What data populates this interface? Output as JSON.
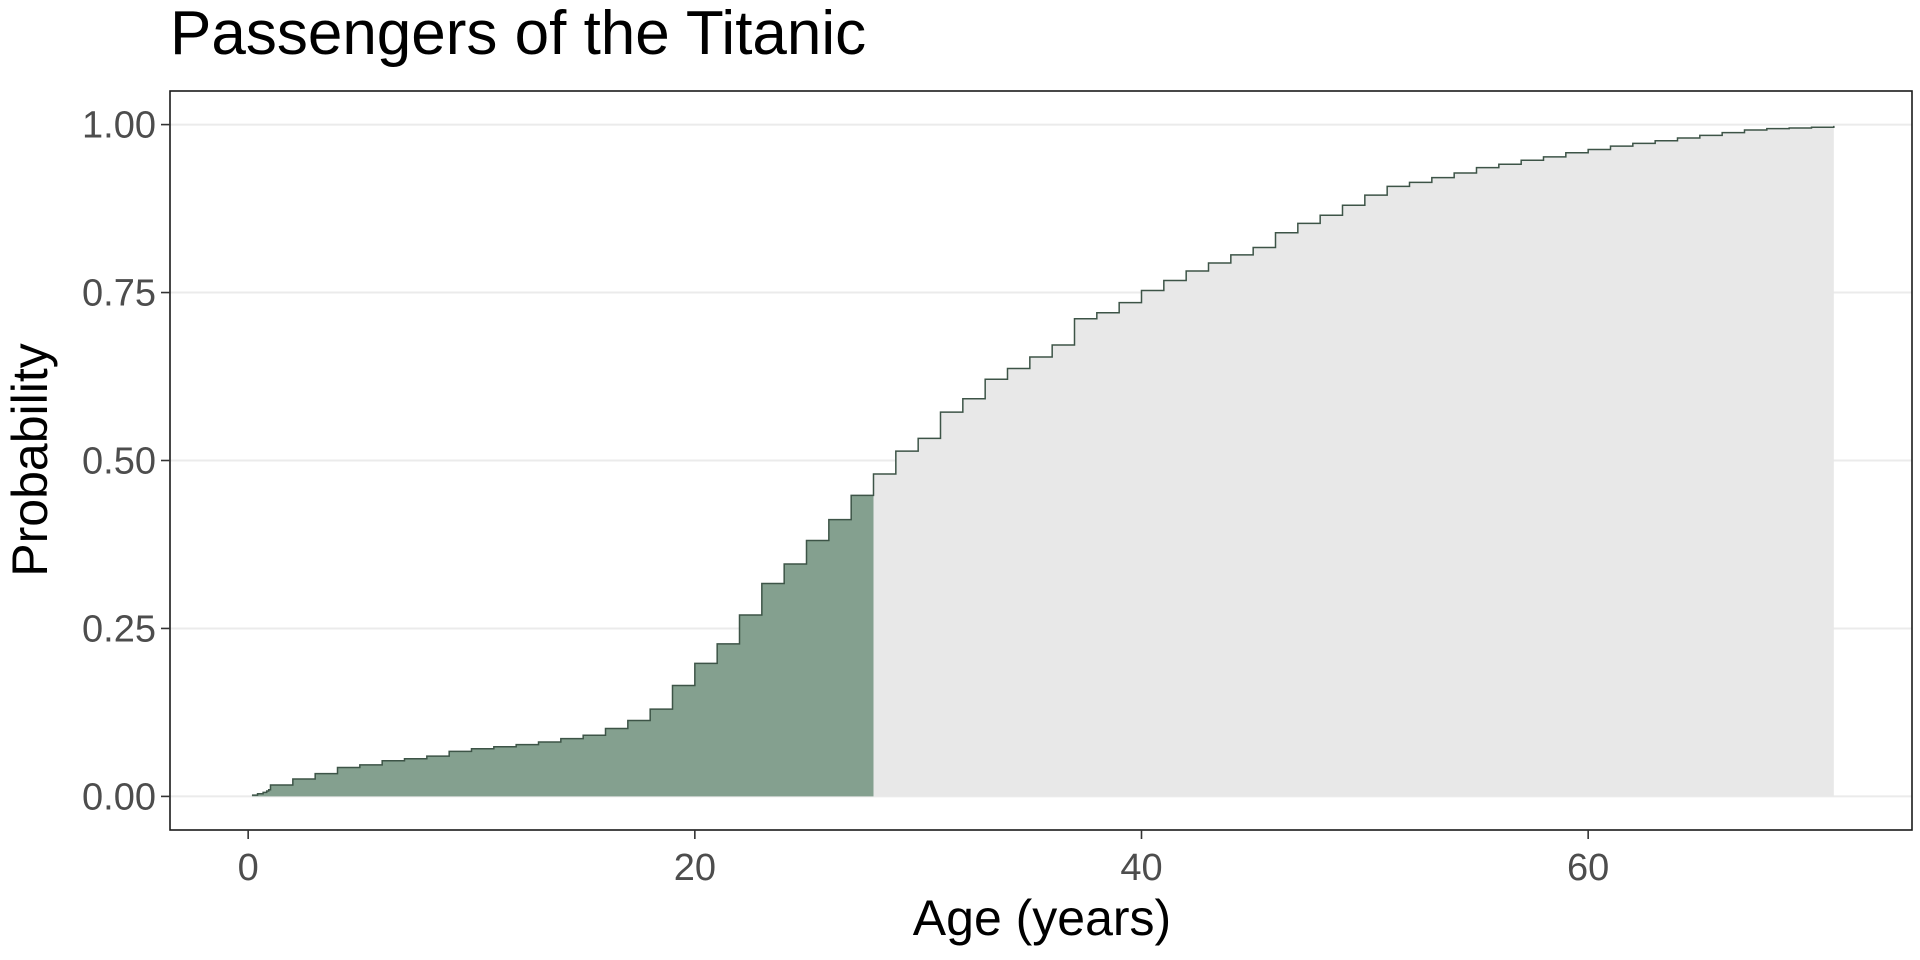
{
  "chart_data": {
    "type": "area",
    "title": "Passengers of the Titanic",
    "xlabel": "Age (years)",
    "ylabel": "Probability",
    "xlim": [
      -3.5,
      74.5
    ],
    "ylim": [
      -0.05,
      1.05
    ],
    "x_ticks": [
      0,
      20,
      40,
      60
    ],
    "x_tick_labels": [
      "0",
      "20",
      "40",
      "60"
    ],
    "y_ticks": [
      0,
      0.25,
      0.5,
      0.75,
      1.0
    ],
    "y_tick_labels": [
      "0.00",
      "0.25",
      "0.50",
      "0.75",
      "1.00"
    ],
    "grid": "horizontal",
    "highlight_until_x": 28,
    "highlight_color": "#84a08f",
    "remainder_color": "#e8e8e8",
    "line_color": "#3d5447",
    "steps": [
      [
        0.17,
        0.002
      ],
      [
        0.42,
        0.004
      ],
      [
        0.67,
        0.006
      ],
      [
        0.83,
        0.008
      ],
      [
        0.92,
        0.01
      ],
      [
        1,
        0.017
      ],
      [
        2,
        0.026
      ],
      [
        3,
        0.034
      ],
      [
        4,
        0.043
      ],
      [
        5,
        0.047
      ],
      [
        6,
        0.053
      ],
      [
        7,
        0.056
      ],
      [
        8,
        0.06
      ],
      [
        9,
        0.067
      ],
      [
        10,
        0.071
      ],
      [
        11,
        0.074
      ],
      [
        12,
        0.077
      ],
      [
        13,
        0.081
      ],
      [
        14,
        0.086
      ],
      [
        15,
        0.091
      ],
      [
        16,
        0.101
      ],
      [
        17,
        0.113
      ],
      [
        18,
        0.13
      ],
      [
        19,
        0.165
      ],
      [
        20,
        0.198
      ],
      [
        21,
        0.227
      ],
      [
        22,
        0.27
      ],
      [
        23,
        0.317
      ],
      [
        24,
        0.346
      ],
      [
        25,
        0.381
      ],
      [
        26,
        0.412
      ],
      [
        27,
        0.448
      ],
      [
        28,
        0.48
      ],
      [
        29,
        0.514
      ],
      [
        30,
        0.533
      ],
      [
        31,
        0.572
      ],
      [
        32,
        0.592
      ],
      [
        33,
        0.621
      ],
      [
        34,
        0.637
      ],
      [
        35,
        0.654
      ],
      [
        36,
        0.672
      ],
      [
        37,
        0.711
      ],
      [
        38,
        0.72
      ],
      [
        39,
        0.735
      ],
      [
        40,
        0.753
      ],
      [
        41,
        0.768
      ],
      [
        42,
        0.782
      ],
      [
        43,
        0.794
      ],
      [
        44,
        0.806
      ],
      [
        45,
        0.817
      ],
      [
        46,
        0.839
      ],
      [
        47,
        0.853
      ],
      [
        48,
        0.865
      ],
      [
        49,
        0.88
      ],
      [
        50,
        0.895
      ],
      [
        51,
        0.908
      ],
      [
        52,
        0.914
      ],
      [
        53,
        0.921
      ],
      [
        54,
        0.928
      ],
      [
        55,
        0.936
      ],
      [
        56,
        0.941
      ],
      [
        57,
        0.947
      ],
      [
        58,
        0.952
      ],
      [
        59,
        0.958
      ],
      [
        60,
        0.963
      ],
      [
        61,
        0.968
      ],
      [
        62,
        0.972
      ],
      [
        63,
        0.976
      ],
      [
        64,
        0.98
      ],
      [
        65,
        0.984
      ],
      [
        66,
        0.988
      ],
      [
        67,
        0.992
      ],
      [
        68,
        0.994
      ],
      [
        69,
        0.995
      ],
      [
        70,
        0.996
      ],
      [
        71,
        0.998
      ]
    ]
  }
}
